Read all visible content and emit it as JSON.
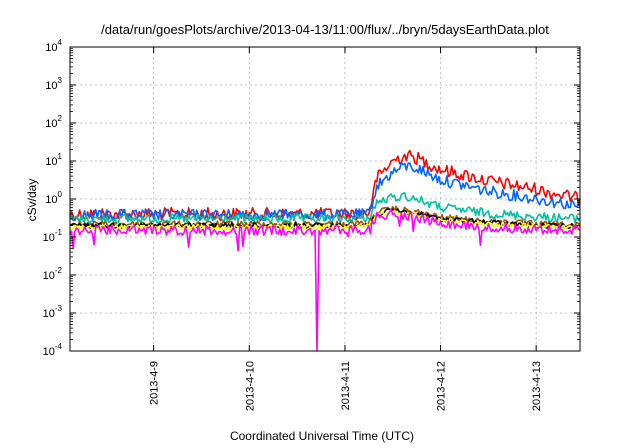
{
  "chart_data": {
    "type": "line",
    "title": "/data/run/goesPlots/archive/2013-04-13/11:00/flux/../bryn/5daysEarthData.plot",
    "xlabel": "Coordinated Universal Time (UTC)",
    "ylabel": "cSv/day",
    "y_scale": "log",
    "ylim": [
      0.0001,
      10000
    ],
    "xlim": [
      "2013-04-08 03:00",
      "2013-04-13 11:00"
    ],
    "grid": true,
    "x_ticks": [
      {
        "label": "2013-4-9",
        "x": "2013-04-09 00:00"
      },
      {
        "label": "2013-4-10",
        "x": "2013-04-10 00:00"
      },
      {
        "label": "2013-4-11",
        "x": "2013-04-11 00:00"
      },
      {
        "label": "2013-4-12",
        "x": "2013-04-12 00:00"
      },
      {
        "label": "2013-4-13",
        "x": "2013-04-13 00:00"
      }
    ],
    "y_ticks": [
      {
        "base": "10",
        "exp": "-4",
        "value": 0.0001
      },
      {
        "base": "10",
        "exp": "-3",
        "value": 0.001
      },
      {
        "base": "10",
        "exp": "-2",
        "value": 0.01
      },
      {
        "base": "10",
        "exp": "-1",
        "value": 0.1
      },
      {
        "base": "10",
        "exp": "0",
        "value": 1
      },
      {
        "base": "10",
        "exp": "1",
        "value": 10
      },
      {
        "base": "10",
        "exp": "2",
        "value": 100
      },
      {
        "base": "10",
        "exp": "3",
        "value": 1000
      },
      {
        "base": "10",
        "exp": "4",
        "value": 10000
      }
    ],
    "series": [
      {
        "color": "#ff0000",
        "values": [
          {
            "x": "2013-04-08 03:00",
            "y": 0.4
          },
          {
            "x": "2013-04-09 00:00",
            "y": 0.4
          },
          {
            "x": "2013-04-10 00:00",
            "y": 0.4
          },
          {
            "x": "2013-04-11 00:00",
            "y": 0.4
          },
          {
            "x": "2013-04-11 06:00",
            "y": 0.42
          },
          {
            "x": "2013-04-11 08:00",
            "y": 3.5
          },
          {
            "x": "2013-04-11 12:00",
            "y": 10
          },
          {
            "x": "2013-04-11 15:00",
            "y": 14
          },
          {
            "x": "2013-04-11 18:00",
            "y": 12
          },
          {
            "x": "2013-04-12 00:00",
            "y": 6
          },
          {
            "x": "2013-04-12 12:00",
            "y": 3
          },
          {
            "x": "2013-04-13 00:00",
            "y": 1.8
          },
          {
            "x": "2013-04-13 11:00",
            "y": 1.0
          }
        ]
      },
      {
        "color": "#0066ff",
        "values": [
          {
            "x": "2013-04-08 03:00",
            "y": 0.38
          },
          {
            "x": "2013-04-09 00:00",
            "y": 0.38
          },
          {
            "x": "2013-04-10 00:00",
            "y": 0.38
          },
          {
            "x": "2013-04-11 00:00",
            "y": 0.38
          },
          {
            "x": "2013-04-11 06:00",
            "y": 0.4
          },
          {
            "x": "2013-04-11 08:00",
            "y": 2.2
          },
          {
            "x": "2013-04-11 12:00",
            "y": 5
          },
          {
            "x": "2013-04-11 15:00",
            "y": 7.5
          },
          {
            "x": "2013-04-11 18:00",
            "y": 6.5
          },
          {
            "x": "2013-04-12 00:00",
            "y": 3.2
          },
          {
            "x": "2013-04-12 12:00",
            "y": 1.6
          },
          {
            "x": "2013-04-13 00:00",
            "y": 1.0
          },
          {
            "x": "2013-04-13 11:00",
            "y": 0.65
          }
        ]
      },
      {
        "color": "#00c0a0",
        "values": [
          {
            "x": "2013-04-08 03:00",
            "y": 0.3
          },
          {
            "x": "2013-04-09 00:00",
            "y": 0.3
          },
          {
            "x": "2013-04-10 00:00",
            "y": 0.3
          },
          {
            "x": "2013-04-11 00:00",
            "y": 0.3
          },
          {
            "x": "2013-04-11 06:00",
            "y": 0.31
          },
          {
            "x": "2013-04-11 08:00",
            "y": 0.8
          },
          {
            "x": "2013-04-11 12:00",
            "y": 1.1
          },
          {
            "x": "2013-04-11 15:00",
            "y": 1.2
          },
          {
            "x": "2013-04-11 18:00",
            "y": 1.0
          },
          {
            "x": "2013-04-12 00:00",
            "y": 0.6
          },
          {
            "x": "2013-04-12 12:00",
            "y": 0.42
          },
          {
            "x": "2013-04-13 00:00",
            "y": 0.34
          },
          {
            "x": "2013-04-13 11:00",
            "y": 0.3
          }
        ]
      },
      {
        "color": "#9a5a00",
        "values": [
          {
            "x": "2013-04-08 03:00",
            "y": 0.22
          },
          {
            "x": "2013-04-09 00:00",
            "y": 0.22
          },
          {
            "x": "2013-04-10 00:00",
            "y": 0.22
          },
          {
            "x": "2013-04-11 00:00",
            "y": 0.22
          },
          {
            "x": "2013-04-11 06:00",
            "y": 0.23
          },
          {
            "x": "2013-04-11 08:00",
            "y": 0.45
          },
          {
            "x": "2013-04-11 12:00",
            "y": 0.55
          },
          {
            "x": "2013-04-11 15:00",
            "y": 0.5
          },
          {
            "x": "2013-04-11 18:00",
            "y": 0.45
          },
          {
            "x": "2013-04-12 00:00",
            "y": 0.33
          },
          {
            "x": "2013-04-12 12:00",
            "y": 0.26
          },
          {
            "x": "2013-04-13 00:00",
            "y": 0.22
          },
          {
            "x": "2013-04-13 11:00",
            "y": 0.2
          }
        ]
      },
      {
        "color": "#000000",
        "values": [
          {
            "x": "2013-04-08 03:00",
            "y": 0.2
          },
          {
            "x": "2013-04-09 00:00",
            "y": 0.2
          },
          {
            "x": "2013-04-10 00:00",
            "y": 0.2
          },
          {
            "x": "2013-04-11 00:00",
            "y": 0.2
          },
          {
            "x": "2013-04-11 06:00",
            "y": 0.21
          },
          {
            "x": "2013-04-11 08:00",
            "y": 0.4
          },
          {
            "x": "2013-04-11 12:00",
            "y": 0.5
          },
          {
            "x": "2013-04-11 15:00",
            "y": 0.46
          },
          {
            "x": "2013-04-11 18:00",
            "y": 0.42
          },
          {
            "x": "2013-04-12 00:00",
            "y": 0.3
          },
          {
            "x": "2013-04-12 12:00",
            "y": 0.24
          },
          {
            "x": "2013-04-13 00:00",
            "y": 0.2
          },
          {
            "x": "2013-04-13 11:00",
            "y": 0.19
          }
        ]
      },
      {
        "color": "#ffff00",
        "values": [
          {
            "x": "2013-04-08 03:00",
            "y": 0.18
          },
          {
            "x": "2013-04-09 00:00",
            "y": 0.18
          },
          {
            "x": "2013-04-10 00:00",
            "y": 0.18
          },
          {
            "x": "2013-04-11 00:00",
            "y": 0.18
          },
          {
            "x": "2013-04-11 06:00",
            "y": 0.19
          },
          {
            "x": "2013-04-11 08:00",
            "y": 0.38
          },
          {
            "x": "2013-04-11 12:00",
            "y": 0.46
          },
          {
            "x": "2013-04-11 15:00",
            "y": 0.42
          },
          {
            "x": "2013-04-11 18:00",
            "y": 0.38
          },
          {
            "x": "2013-04-12 00:00",
            "y": 0.28
          },
          {
            "x": "2013-04-12 12:00",
            "y": 0.22
          },
          {
            "x": "2013-04-13 00:00",
            "y": 0.19
          },
          {
            "x": "2013-04-13 11:00",
            "y": 0.17
          }
        ]
      },
      {
        "color": "#ff00ff",
        "values": [
          {
            "x": "2013-04-08 03:00",
            "y": 0.15
          },
          {
            "x": "2013-04-09 00:00",
            "y": 0.15
          },
          {
            "x": "2013-04-10 00:00",
            "y": 0.15
          },
          {
            "x": "2013-04-10 16:30",
            "y": 0.15
          },
          {
            "x": "2013-04-10 17:00",
            "y": 0.0001
          },
          {
            "x": "2013-04-10 17:30",
            "y": 0.15
          },
          {
            "x": "2013-04-11 00:00",
            "y": 0.15
          },
          {
            "x": "2013-04-11 06:00",
            "y": 0.16
          },
          {
            "x": "2013-04-11 08:00",
            "y": 0.35
          },
          {
            "x": "2013-04-11 12:00",
            "y": 0.42
          },
          {
            "x": "2013-04-11 15:00",
            "y": 0.38
          },
          {
            "x": "2013-04-11 18:00",
            "y": 0.33
          },
          {
            "x": "2013-04-12 00:00",
            "y": 0.24
          },
          {
            "x": "2013-04-12 12:00",
            "y": 0.19
          },
          {
            "x": "2013-04-13 00:00",
            "y": 0.16
          },
          {
            "x": "2013-04-13 11:00",
            "y": 0.15
          }
        ]
      }
    ]
  }
}
